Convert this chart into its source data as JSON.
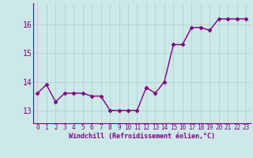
{
  "x": [
    0,
    1,
    2,
    3,
    4,
    5,
    6,
    7,
    8,
    9,
    10,
    11,
    12,
    13,
    14,
    15,
    16,
    17,
    18,
    19,
    20,
    21,
    22,
    23
  ],
  "y": [
    13.6,
    13.9,
    13.3,
    13.6,
    13.6,
    13.6,
    13.5,
    13.5,
    13.0,
    13.0,
    13.0,
    13.0,
    13.8,
    13.6,
    14.0,
    15.3,
    15.3,
    15.9,
    15.9,
    15.8,
    16.2,
    16.2,
    16.2,
    16.2
  ],
  "line_color": "#800080",
  "marker": "D",
  "marker_size": 2.5,
  "linewidth": 1.0,
  "background_color": "#cce8e8",
  "grid_color": "#aacccc",
  "xlabel": "Windchill (Refroidissement éolien,°C)",
  "xlabel_color": "#800080",
  "xlabel_fontsize": 6,
  "tick_color": "#800080",
  "tick_fontsize": 5.5,
  "ytick_fontsize": 7,
  "yticks": [
    13,
    14,
    15,
    16
  ],
  "ylim": [
    12.55,
    16.75
  ],
  "xlim": [
    -0.5,
    23.5
  ],
  "xticks": [
    0,
    1,
    2,
    3,
    4,
    5,
    6,
    7,
    8,
    9,
    10,
    11,
    12,
    13,
    14,
    15,
    16,
    17,
    18,
    19,
    20,
    21,
    22,
    23
  ]
}
